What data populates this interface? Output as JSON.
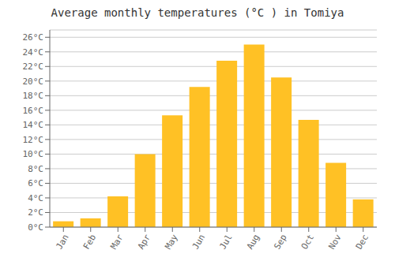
{
  "chart_data": {
    "type": "bar",
    "title": "Average monthly temperatures (°C ) in Tomiya",
    "categories": [
      "Jan",
      "Feb",
      "Mar",
      "Apr",
      "May",
      "Jun",
      "Jul",
      "Aug",
      "Sep",
      "Oct",
      "Nov",
      "Dec"
    ],
    "values": [
      0.8,
      1.2,
      4.2,
      10.0,
      15.3,
      19.2,
      22.8,
      25.0,
      20.5,
      14.7,
      8.8,
      3.8
    ],
    "color": "#FFC125",
    "ylim": [
      0,
      27
    ],
    "yticks": [
      {
        "value": 0,
        "label": "0°C"
      },
      {
        "value": 2,
        "label": "2°C"
      },
      {
        "value": 4,
        "label": "4°C"
      },
      {
        "value": 6,
        "label": "6°C"
      },
      {
        "value": 8,
        "label": "8°C"
      },
      {
        "value": 10,
        "label": "10°C"
      },
      {
        "value": 12,
        "label": "12°C"
      },
      {
        "value": 14,
        "label": "14°C"
      },
      {
        "value": 16,
        "label": "16°C"
      },
      {
        "value": 18,
        "label": "18°C"
      },
      {
        "value": 20,
        "label": "20°C"
      },
      {
        "value": 22,
        "label": "22°C"
      },
      {
        "value": 24,
        "label": "24°C"
      },
      {
        "value": 26,
        "label": "26°C"
      }
    ],
    "grid": true
  }
}
